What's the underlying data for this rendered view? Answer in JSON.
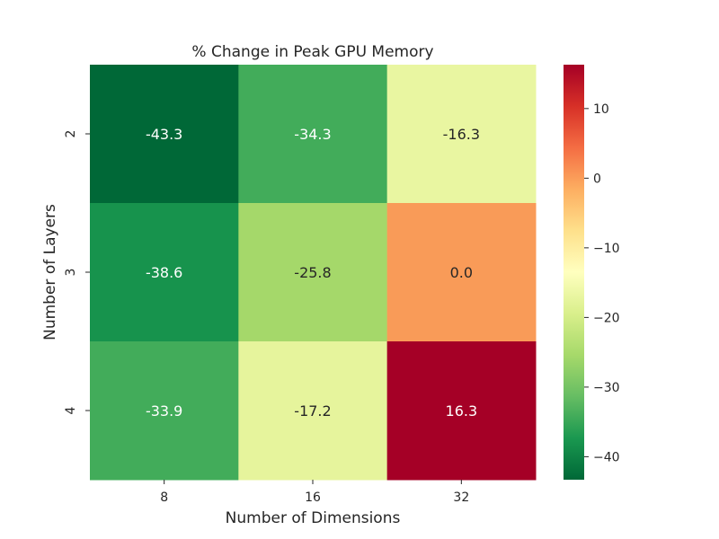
{
  "chart_data": {
    "type": "heatmap",
    "title": "% Change in Peak GPU Memory",
    "xlabel": "Number of Dimensions",
    "ylabel": "Number of Layers",
    "x_categories": [
      "8",
      "16",
      "32"
    ],
    "y_categories": [
      "2",
      "3",
      "4"
    ],
    "values": [
      [
        -43.3,
        -34.3,
        -16.3
      ],
      [
        -38.6,
        -25.8,
        0.0
      ],
      [
        -33.9,
        -17.2,
        16.3
      ]
    ],
    "colormap": "RdYlGn_r",
    "colorbar": {
      "vmin": -43.3,
      "vmax": 16.3,
      "ticks": [
        10,
        0,
        -10,
        -20,
        -30,
        -40
      ],
      "tick_labels": [
        "10",
        "0",
        "−10",
        "−20",
        "−30",
        "−40"
      ]
    },
    "cell_colors": [
      [
        "#006837",
        "#42ac5a",
        "#e9f6a1"
      ],
      [
        "#17934d",
        "#a5d86a",
        "#f99b58"
      ],
      [
        "#42ac5a",
        "#e6f49c",
        "#a50026"
      ]
    ],
    "annotation_text_colors": [
      [
        "#ffffff",
        "#ffffff",
        "#262626"
      ],
      [
        "#ffffff",
        "#262626",
        "#262626"
      ],
      [
        "#ffffff",
        "#262626",
        "#ffffff"
      ]
    ],
    "grid": false,
    "legend": "colorbar-right"
  }
}
